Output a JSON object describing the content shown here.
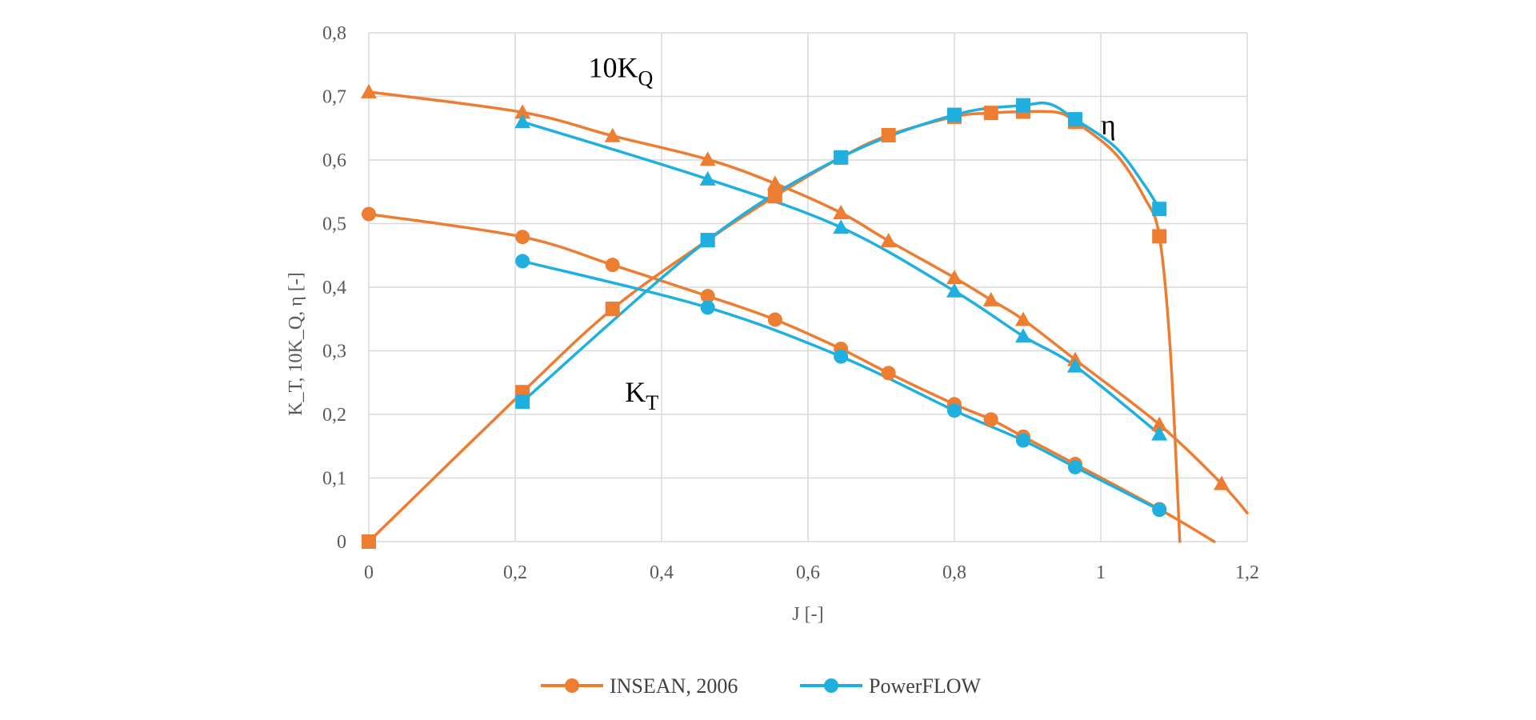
{
  "chart_data": {
    "type": "line",
    "title": "",
    "xlabel": "J [-]",
    "ylabel": "K_T, 10K_Q, η [-]",
    "xlim": [
      0,
      1.2
    ],
    "ylim": [
      0,
      0.8
    ],
    "x_ticks": [
      "0",
      "0,2",
      "0,4",
      "0,6",
      "0,8",
      "1",
      "1,2"
    ],
    "y_ticks": [
      "0",
      "0,1",
      "0,2",
      "0,3",
      "0,4",
      "0,5",
      "0,6",
      "0,7",
      "0,8"
    ],
    "grid": true,
    "legend_position": "bottom",
    "colors": {
      "INSEAN": "#ED7D31",
      "PowerFLOW": "#1FB0E0",
      "grid": "#D9D9D9"
    },
    "legend": [
      {
        "name": "INSEAN, 2006",
        "marker": "circle",
        "color": "#ED7D31"
      },
      {
        "name": "PowerFLOW",
        "marker": "circle",
        "color": "#1FB0E0"
      }
    ],
    "annotations": [
      {
        "curve": "10KQ",
        "base": "10K",
        "sub": "Q",
        "at": [
          0.3,
          0.73
        ]
      },
      {
        "curve": "KT",
        "base": "K",
        "sub": "T",
        "at": [
          0.35,
          0.22
        ]
      },
      {
        "curve": "eta",
        "base": "η",
        "sub": "",
        "at": [
          1.0,
          0.64
        ]
      }
    ],
    "series": [
      {
        "name": "INSEAN, 2006",
        "quantity": "KT",
        "marker": "circle",
        "color": "#ED7D31",
        "x": [
          0,
          0.21,
          0.333,
          0.463,
          0.555,
          0.645,
          0.71,
          0.8,
          0.85,
          0.894,
          0.965,
          1.08
        ],
        "y": [
          0.515,
          0.479,
          0.435,
          0.386,
          0.349,
          0.303,
          0.265,
          0.216,
          0.192,
          0.165,
          0.122,
          0.051
        ],
        "curve_x": [
          0,
          0.21,
          0.333,
          0.463,
          0.555,
          0.645,
          0.71,
          0.8,
          0.85,
          0.894,
          0.965,
          1.08,
          1.155
        ],
        "curve_y": [
          0.515,
          0.479,
          0.435,
          0.386,
          0.349,
          0.303,
          0.265,
          0.216,
          0.192,
          0.165,
          0.122,
          0.051,
          0.0
        ]
      },
      {
        "name": "INSEAN, 2006",
        "quantity": "10KQ",
        "marker": "triangle",
        "color": "#ED7D31",
        "x": [
          0,
          0.21,
          0.333,
          0.463,
          0.555,
          0.645,
          0.71,
          0.8,
          0.85,
          0.894,
          0.965,
          1.08,
          1.165
        ],
        "y": [
          0.707,
          0.675,
          0.638,
          0.601,
          0.563,
          0.517,
          0.473,
          0.415,
          0.38,
          0.349,
          0.286,
          0.184,
          0.091
        ],
        "curve_x": [
          0,
          0.21,
          0.333,
          0.463,
          0.555,
          0.645,
          0.71,
          0.8,
          0.85,
          0.894,
          0.965,
          1.08,
          1.165,
          1.2
        ],
        "curve_y": [
          0.707,
          0.675,
          0.638,
          0.601,
          0.563,
          0.517,
          0.473,
          0.415,
          0.38,
          0.349,
          0.286,
          0.184,
          0.091,
          0.045
        ]
      },
      {
        "name": "INSEAN, 2006",
        "quantity": "eta",
        "marker": "square",
        "color": "#ED7D31",
        "x": [
          0,
          0.21,
          0.333,
          0.463,
          0.555,
          0.645,
          0.71,
          0.8,
          0.85,
          0.894,
          0.965,
          1.08
        ],
        "y": [
          0,
          0.235,
          0.366,
          0.474,
          0.543,
          0.604,
          0.639,
          0.668,
          0.674,
          0.676,
          0.66,
          0.48
        ],
        "curve_x": [
          0,
          0.21,
          0.333,
          0.463,
          0.555,
          0.645,
          0.71,
          0.8,
          0.85,
          0.894,
          0.94,
          0.965,
          1.02,
          1.06,
          1.08,
          1.095,
          1.108
        ],
        "curve_y": [
          0,
          0.235,
          0.366,
          0.474,
          0.543,
          0.604,
          0.639,
          0.668,
          0.674,
          0.676,
          0.675,
          0.66,
          0.61,
          0.54,
          0.48,
          0.3,
          0.0
        ]
      },
      {
        "name": "PowerFLOW",
        "quantity": "KT",
        "marker": "circle",
        "color": "#1FB0E0",
        "x": [
          0.21,
          0.463,
          0.645,
          0.8,
          0.894,
          0.965,
          1.08
        ],
        "y": [
          0.441,
          0.368,
          0.291,
          0.206,
          0.159,
          0.117,
          0.05
        ],
        "curve_x": [
          0.21,
          0.463,
          0.645,
          0.8,
          0.894,
          0.965,
          1.08
        ],
        "curve_y": [
          0.441,
          0.368,
          0.291,
          0.206,
          0.159,
          0.117,
          0.05
        ]
      },
      {
        "name": "PowerFLOW",
        "quantity": "10KQ",
        "marker": "triangle",
        "color": "#1FB0E0",
        "x": [
          0.21,
          0.463,
          0.645,
          0.8,
          0.894,
          0.965,
          1.08
        ],
        "y": [
          0.66,
          0.57,
          0.494,
          0.394,
          0.323,
          0.276,
          0.169
        ],
        "curve_x": [
          0.21,
          0.463,
          0.645,
          0.8,
          0.894,
          0.965,
          1.08
        ],
        "curve_y": [
          0.66,
          0.57,
          0.494,
          0.394,
          0.323,
          0.276,
          0.169
        ]
      },
      {
        "name": "PowerFLOW",
        "quantity": "eta",
        "marker": "square",
        "color": "#1FB0E0",
        "x": [
          0.21,
          0.463,
          0.645,
          0.8,
          0.894,
          0.965,
          1.08
        ],
        "y": [
          0.22,
          0.474,
          0.604,
          0.671,
          0.686,
          0.664,
          0.523
        ],
        "curve_x": [
          0.21,
          0.463,
          0.645,
          0.8,
          0.894,
          0.93,
          0.965,
          1.02,
          1.06,
          1.08
        ],
        "curve_y": [
          0.22,
          0.474,
          0.604,
          0.671,
          0.686,
          0.688,
          0.664,
          0.62,
          0.56,
          0.523
        ]
      }
    ]
  }
}
